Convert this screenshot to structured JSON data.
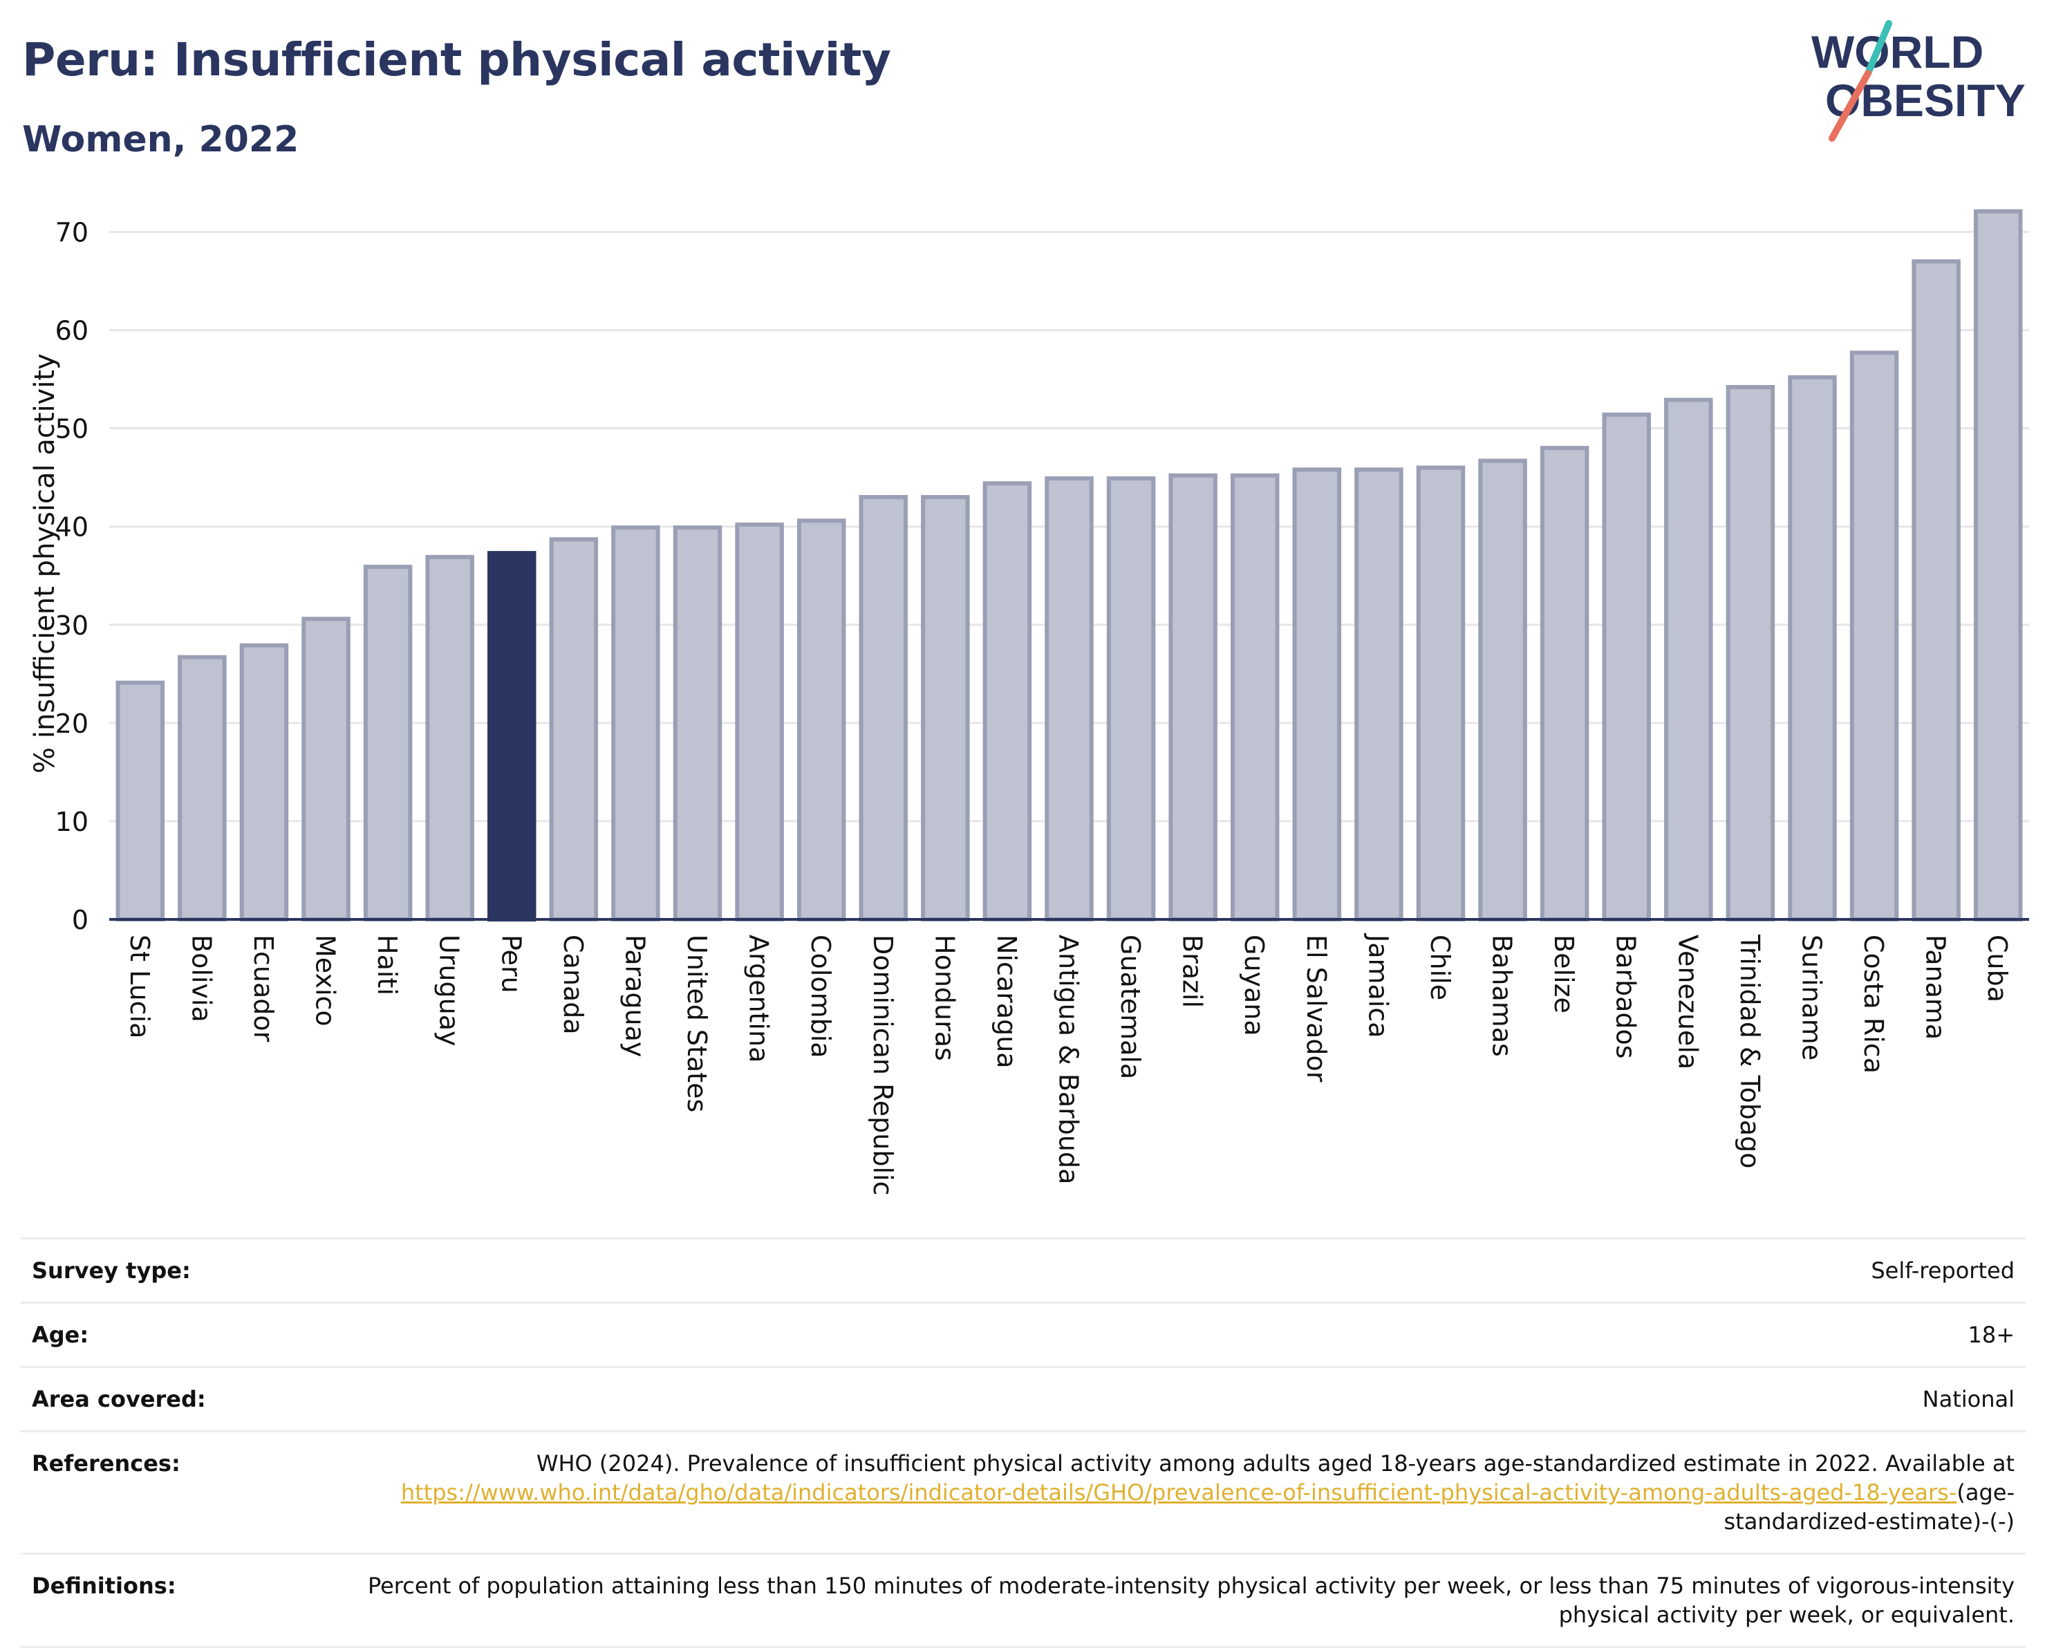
{
  "header": {
    "title": "Peru: Insufficient physical activity",
    "subtitle": "Women, 2022"
  },
  "logo": {
    "line1": "WORLD",
    "line2": "OBESITY",
    "colors": {
      "text": "#2a3560",
      "teal": "#3bbfb5",
      "coral": "#e8705e"
    }
  },
  "chart_data": {
    "type": "bar",
    "ylabel": "% insufficient physical activity",
    "xlabel": "",
    "ylim": [
      0,
      72.5
    ],
    "yticks": [
      0,
      10,
      20,
      30,
      40,
      50,
      60,
      70
    ],
    "grid": true,
    "highlight": "Peru",
    "colors": {
      "bar_fill": "#bfc2d0",
      "bar_edge": "#9a9fb5",
      "highlight_fill": "#2a3560",
      "grid": "#e6e6e6",
      "axis": "#2a3560"
    },
    "categories": [
      "St Lucia",
      "Bolivia",
      "Ecuador",
      "Mexico",
      "Haiti",
      "Uruguay",
      "Peru",
      "Canada",
      "Paraguay",
      "United States",
      "Argentina",
      "Colombia",
      "Dominican Republic",
      "Honduras",
      "Nicaragua",
      "Antigua & Barbuda",
      "Guatemala",
      "Brazil",
      "Guyana",
      "El Salvador",
      "Jamaica",
      "Chile",
      "Bahamas",
      "Belize",
      "Barbados",
      "Venezuela",
      "Trinidad & Tobago",
      "Suriname",
      "Costa Rica",
      "Panama",
      "Cuba"
    ],
    "values": [
      24.1,
      26.7,
      27.9,
      30.6,
      35.9,
      36.9,
      37.3,
      38.7,
      39.9,
      39.9,
      40.2,
      40.6,
      43.0,
      43.0,
      44.4,
      44.9,
      44.9,
      45.2,
      45.2,
      45.8,
      45.8,
      46.0,
      46.7,
      48.0,
      51.4,
      52.9,
      54.2,
      55.2,
      57.7,
      67.0,
      72.1
    ]
  },
  "info": {
    "survey_type_label": "Survey type:",
    "survey_type_value": "Self-reported",
    "age_label": "Age:",
    "age_value": "18+",
    "area_label": "Area covered:",
    "area_value": "National",
    "references_label": "References:",
    "references_text": "WHO (2024). Prevalence of insufficient physical activity among adults aged 18-years age-standardized estimate in 2022. Available at",
    "references_link": "https://www.who.int/data/gho/data/indicators/indicator-details/GHO/prevalence-of-insufficient-physical-activity-among-adults-aged-18-years-",
    "references_suffix": "(age-standardized-estimate)-(-)",
    "definitions_label": "Definitions:",
    "definitions_text": "Percent of population attaining less than 150 minutes of moderate-intensity physical activity per week, or less than 75 minutes of vigorous-intensity physical activity per week, or equivalent."
  }
}
